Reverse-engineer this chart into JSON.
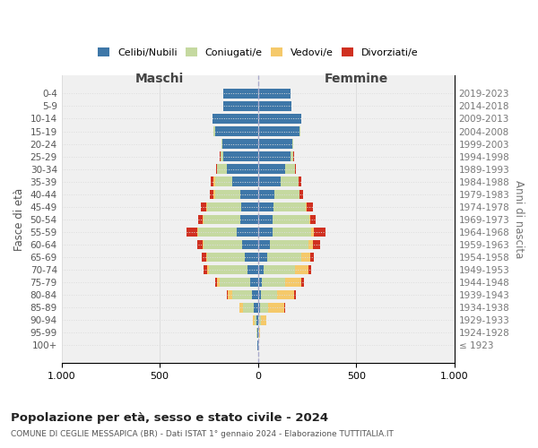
{
  "age_groups": [
    "100+",
    "95-99",
    "90-94",
    "85-89",
    "80-84",
    "75-79",
    "70-74",
    "65-69",
    "60-64",
    "55-59",
    "50-54",
    "45-49",
    "40-44",
    "35-39",
    "30-34",
    "25-29",
    "20-24",
    "15-19",
    "10-14",
    "5-9",
    "0-4"
  ],
  "birth_years": [
    "≤ 1923",
    "1924-1928",
    "1929-1933",
    "1934-1938",
    "1939-1943",
    "1944-1948",
    "1949-1953",
    "1954-1958",
    "1959-1963",
    "1964-1968",
    "1969-1973",
    "1974-1978",
    "1979-1983",
    "1984-1988",
    "1989-1993",
    "1994-1998",
    "1999-2003",
    "2004-2008",
    "2009-2013",
    "2014-2018",
    "2019-2023"
  ],
  "maschi": {
    "celibi": [
      2,
      4,
      8,
      20,
      30,
      40,
      55,
      65,
      80,
      110,
      90,
      85,
      90,
      130,
      160,
      175,
      180,
      220,
      230,
      175,
      175
    ],
    "coniugati": [
      0,
      2,
      10,
      55,
      100,
      155,
      195,
      195,
      195,
      195,
      185,
      175,
      130,
      90,
      50,
      15,
      5,
      5,
      0,
      0,
      0
    ],
    "vedovi": [
      0,
      2,
      8,
      20,
      25,
      15,
      10,
      5,
      5,
      5,
      5,
      5,
      5,
      5,
      0,
      0,
      0,
      0,
      0,
      0,
      0
    ],
    "divorziati": [
      0,
      0,
      0,
      0,
      5,
      10,
      15,
      20,
      30,
      55,
      25,
      25,
      20,
      15,
      5,
      5,
      0,
      0,
      0,
      0,
      0
    ]
  },
  "femmine": {
    "nubili": [
      2,
      3,
      5,
      12,
      15,
      20,
      30,
      45,
      60,
      75,
      75,
      80,
      85,
      115,
      140,
      165,
      175,
      210,
      220,
      170,
      165
    ],
    "coniugate": [
      0,
      2,
      8,
      40,
      80,
      120,
      160,
      175,
      195,
      195,
      185,
      165,
      125,
      90,
      50,
      15,
      5,
      5,
      0,
      0,
      0
    ],
    "vedove": [
      0,
      5,
      30,
      80,
      90,
      80,
      65,
      45,
      25,
      15,
      5,
      5,
      0,
      0,
      0,
      0,
      0,
      0,
      0,
      0,
      0
    ],
    "divorziate": [
      0,
      0,
      0,
      5,
      10,
      15,
      15,
      20,
      35,
      60,
      30,
      30,
      20,
      15,
      5,
      5,
      0,
      0,
      0,
      0,
      0
    ]
  },
  "colors": {
    "celibi": "#3E77A8",
    "coniugati": "#C5D9A0",
    "vedovi": "#F5C96A",
    "divorziati": "#D03020"
  },
  "legend_labels": [
    "Celibi/Nubili",
    "Coniugati/e",
    "Vedovi/e",
    "Divorziati/e"
  ],
  "title": "Popolazione per età, sesso e stato civile - 2024",
  "subtitle": "COMUNE DI CEGLIE MESSAPICA (BR) - Dati ISTAT 1° gennaio 2024 - Elaborazione TUTTITALIA.IT",
  "ylabel_left": "Fasce di età",
  "ylabel_right": "Anni di nascita",
  "xlabel_left": "Maschi",
  "xlabel_right": "Femmine",
  "xlim": 1000,
  "bg_color": "#ffffff",
  "grid_color": "#dddddd"
}
